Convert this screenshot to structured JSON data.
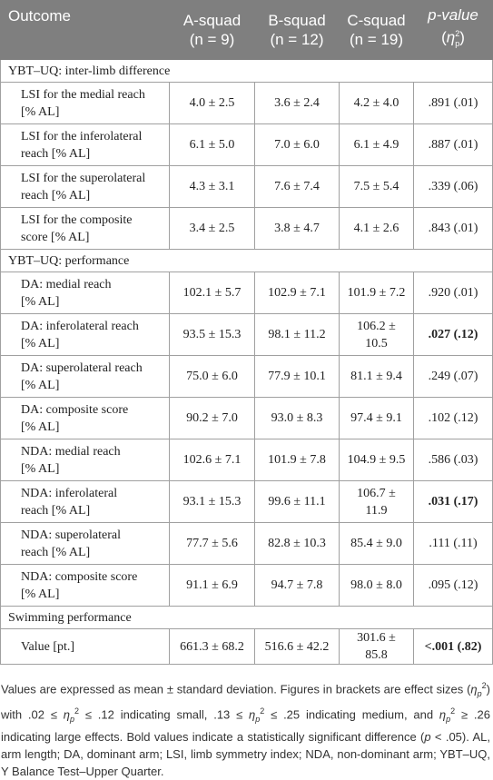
{
  "header": {
    "outcome": "Outcome",
    "groups": [
      {
        "name": "A-squad",
        "n": "(n = 9)"
      },
      {
        "name": "B-squad",
        "n": "(n = 12)"
      },
      {
        "name": "C-squad",
        "n": "(n = 19)"
      }
    ],
    "p": {
      "name": "p-value",
      "open": "(",
      "eta": "η",
      "sub": "p",
      "sup": "2",
      "close": ")"
    }
  },
  "sections": [
    {
      "title": "YBT–UQ: inter-limb difference",
      "rows": [
        {
          "label": "LSI for the medial reach\n[% AL]",
          "cells": [
            "4.0 ± 2.5",
            "3.6 ± 2.4",
            "4.2 ± 4.0",
            ".891 (.01)"
          ]
        },
        {
          "label": "LSI for the inferolateral\nreach [% AL]",
          "cells": [
            "6.1 ± 5.0",
            "7.0 ± 6.0",
            "6.1 ± 4.9",
            ".887 (.01)"
          ]
        },
        {
          "label": "LSI for the superolateral\nreach [% AL]",
          "cells": [
            "4.3 ± 3.1",
            "7.6 ± 7.4",
            "7.5 ± 5.4",
            ".339 (.06)"
          ]
        },
        {
          "label": "LSI for the composite\nscore [% AL]",
          "cells": [
            "3.4 ± 2.5",
            "3.8 ± 4.7",
            "4.1 ± 2.6",
            ".843 (.01)"
          ]
        }
      ]
    },
    {
      "title": "YBT–UQ: performance",
      "rows": [
        {
          "label": "DA: medial reach\n[% AL]",
          "cells": [
            "102.1 ± 5.7",
            "102.9 ± 7.1",
            "101.9 ± 7.2",
            ".920 (.01)"
          ]
        },
        {
          "label": "DA: inferolateral reach\n[% AL]",
          "cells": [
            "93.5 ± 15.3",
            "98.1 ± 11.2",
            "106.2 ± 10.5",
            ".027 (.12)"
          ],
          "bold": true
        },
        {
          "label": "DA: superolateral reach\n[% AL]",
          "cells": [
            "75.0 ± 6.0",
            "77.9 ± 10.1",
            "81.1 ± 9.4",
            ".249 (.07)"
          ]
        },
        {
          "label": "DA: composite score\n[% AL]",
          "cells": [
            "90.2 ± 7.0",
            "93.0 ± 8.3",
            "97.4 ± 9.1",
            ".102 (.12)"
          ]
        },
        {
          "label": "NDA: medial reach\n[% AL]",
          "cells": [
            "102.6 ± 7.1",
            "101.9 ± 7.8",
            "104.9 ± 9.5",
            ".586 (.03)"
          ]
        },
        {
          "label": "NDA: inferolateral\nreach [% AL]",
          "cells": [
            "93.1 ± 15.3",
            "99.6 ± 11.1",
            "106.7 ± 11.9",
            ".031 (.17)"
          ],
          "bold": true
        },
        {
          "label": "NDA: superolateral\nreach [% AL]",
          "cells": [
            "77.7 ± 5.6",
            "82.8 ± 10.3",
            "85.4 ± 9.0",
            ".111 (.11)"
          ]
        },
        {
          "label": "NDA: composite score\n[% AL]",
          "cells": [
            "91.1 ± 6.9",
            "94.7 ± 7.8",
            "98.0 ± 8.0",
            ".095 (.12)"
          ]
        }
      ]
    },
    {
      "title": "Swimming performance",
      "rows": [
        {
          "label": "Value [pt.]",
          "cells": [
            "661.3 ± 68.2",
            "516.6 ± 42.2",
            "301.6 ± 85.8",
            "<.001 (.82)"
          ],
          "bold": true
        }
      ]
    }
  ],
  "footnote": [
    "Values are expressed as mean ± standard deviation. Figures in brackets are effect sizes (",
    "η",
    "p",
    "2",
    ") with .02 ≤ ",
    "η",
    "p",
    "2",
    " ≤ .12 indicating small, .13 ≤ ",
    "η",
    "p",
    "2",
    " ≤ .25 indicating medium, and ",
    "η",
    "p",
    "2",
    " ≥ .26 indicating large effects. Bold values indicate a statistically significant difference (",
    "p",
    " < .05). AL, arm length; DA, dominant arm; LSI, limb symmetry index; NDA, non-dominant arm; YBT–UQ, Y Balance Test–Upper Quarter."
  ]
}
